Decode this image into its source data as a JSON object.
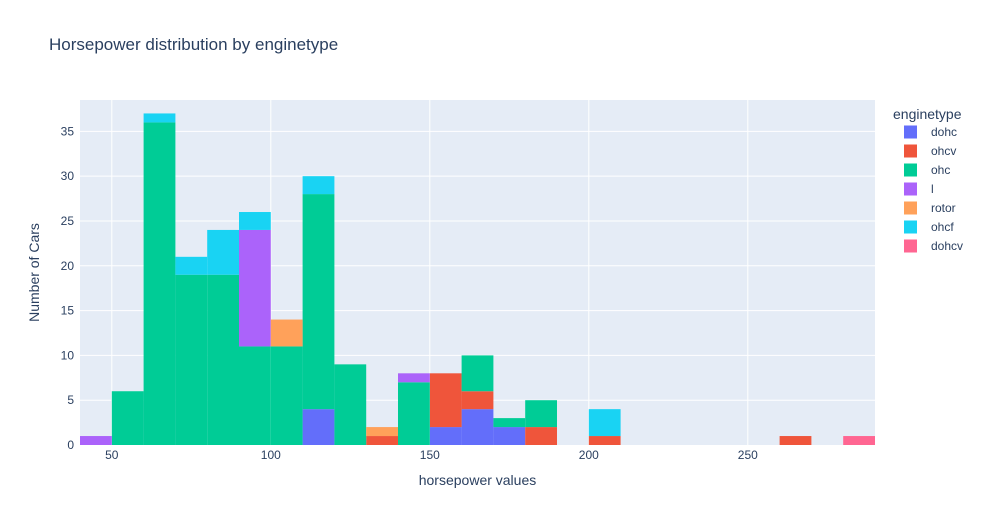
{
  "chart_data": {
    "type": "bar",
    "subtype": "stacked-histogram",
    "title": "Horsepower distribution by enginetype",
    "xlabel": "horsepower values",
    "ylabel": "Number of Cars",
    "xlim": [
      40,
      290
    ],
    "ylim": [
      0,
      38.5
    ],
    "bin_width": 10,
    "x_ticks": [
      50,
      100,
      150,
      200,
      250
    ],
    "y_ticks": [
      0,
      5,
      10,
      15,
      20,
      25,
      30,
      35
    ],
    "grid": true,
    "legend": {
      "title": "enginetype",
      "position": "right"
    },
    "series": [
      {
        "name": "dohc",
        "color": "#636efa",
        "bins": [
          {
            "x0": 110,
            "x1": 120,
            "count": 4
          },
          {
            "x0": 150,
            "x1": 160,
            "count": 2
          },
          {
            "x0": 160,
            "x1": 170,
            "count": 4
          },
          {
            "x0": 170,
            "x1": 180,
            "count": 2
          }
        ]
      },
      {
        "name": "ohcv",
        "color": "#ef553b",
        "bins": [
          {
            "x0": 130,
            "x1": 140,
            "count": 1
          },
          {
            "x0": 150,
            "x1": 160,
            "count": 6
          },
          {
            "x0": 160,
            "x1": 170,
            "count": 2
          },
          {
            "x0": 180,
            "x1": 190,
            "count": 2
          },
          {
            "x0": 200,
            "x1": 210,
            "count": 1
          },
          {
            "x0": 260,
            "x1": 270,
            "count": 1
          }
        ]
      },
      {
        "name": "ohc",
        "color": "#00cc96",
        "bins": [
          {
            "x0": 50,
            "x1": 60,
            "count": 6
          },
          {
            "x0": 60,
            "x1": 70,
            "count": 36
          },
          {
            "x0": 70,
            "x1": 80,
            "count": 19
          },
          {
            "x0": 80,
            "x1": 90,
            "count": 19
          },
          {
            "x0": 90,
            "x1": 100,
            "count": 11
          },
          {
            "x0": 100,
            "x1": 110,
            "count": 11
          },
          {
            "x0": 110,
            "x1": 120,
            "count": 24
          },
          {
            "x0": 120,
            "x1": 130,
            "count": 9
          },
          {
            "x0": 140,
            "x1": 150,
            "count": 7
          },
          {
            "x0": 160,
            "x1": 170,
            "count": 4
          },
          {
            "x0": 170,
            "x1": 180,
            "count": 1
          },
          {
            "x0": 180,
            "x1": 190,
            "count": 3
          }
        ]
      },
      {
        "name": "l",
        "color": "#ab63fa",
        "bins": [
          {
            "x0": 40,
            "x1": 50,
            "count": 1
          },
          {
            "x0": 90,
            "x1": 100,
            "count": 13
          },
          {
            "x0": 140,
            "x1": 150,
            "count": 1
          }
        ]
      },
      {
        "name": "rotor",
        "color": "#ffa15a",
        "bins": [
          {
            "x0": 100,
            "x1": 110,
            "count": 3
          },
          {
            "x0": 130,
            "x1": 140,
            "count": 1
          }
        ]
      },
      {
        "name": "ohcf",
        "color": "#19d3f3",
        "bins": [
          {
            "x0": 60,
            "x1": 70,
            "count": 1
          },
          {
            "x0": 70,
            "x1": 80,
            "count": 2
          },
          {
            "x0": 80,
            "x1": 90,
            "count": 5
          },
          {
            "x0": 90,
            "x1": 100,
            "count": 2
          },
          {
            "x0": 110,
            "x1": 120,
            "count": 2
          },
          {
            "x0": 200,
            "x1": 210,
            "count": 3
          }
        ]
      },
      {
        "name": "dohcv",
        "color": "#ff6692",
        "bins": [
          {
            "x0": 280,
            "x1": 290,
            "count": 1
          }
        ]
      }
    ]
  }
}
